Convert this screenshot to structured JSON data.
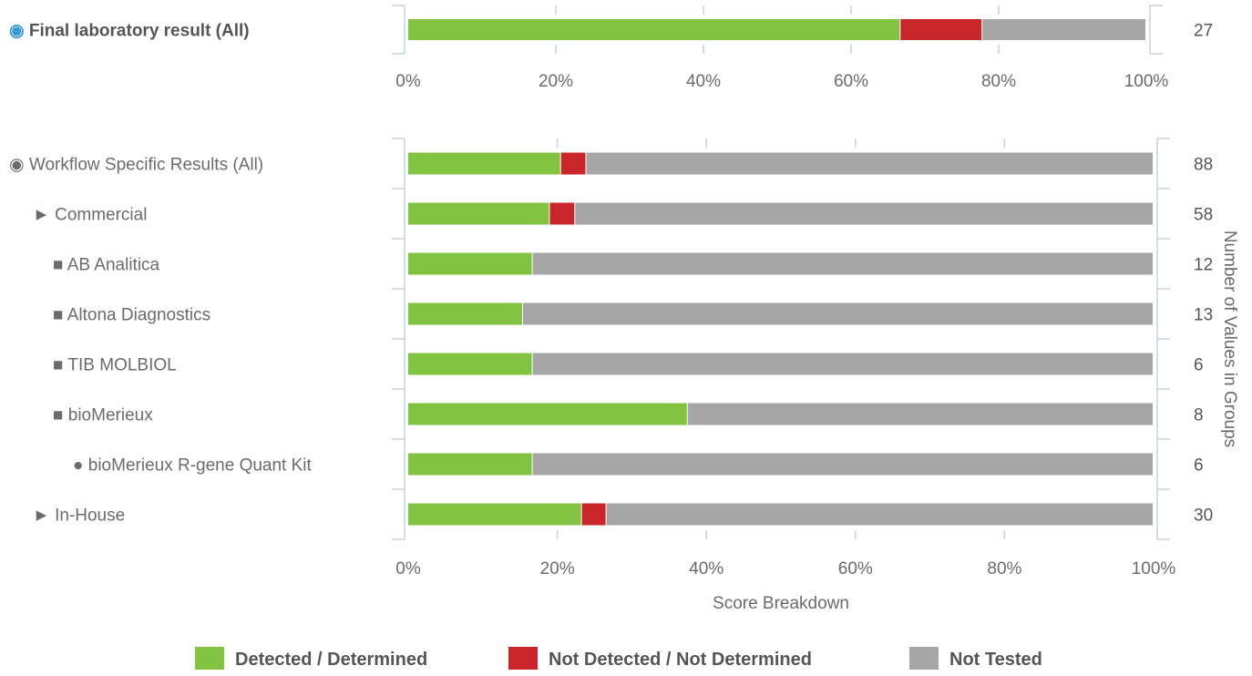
{
  "chart_data": [
    {
      "type": "bar",
      "stacked": true,
      "orientation": "horizontal",
      "categories": [
        {
          "symbol": "◉",
          "text": "Final laboratory result (All)"
        }
      ],
      "series": [
        {
          "name": "Detected / Determined",
          "color": "#82c341",
          "values": [
            66.7
          ]
        },
        {
          "name": "Not Detected / Not Determined",
          "color": "#c8262a",
          "values": [
            11.1
          ]
        },
        {
          "name": "Not Tested",
          "color": "#a6a6a6",
          "values": [
            22.2
          ]
        }
      ],
      "counts": [
        "27"
      ],
      "xticks": [
        "0%",
        "20%",
        "40%",
        "60%",
        "80%",
        "100%"
      ],
      "xlim": [
        0,
        100
      ],
      "xlabel": "",
      "ylabel_right": ""
    },
    {
      "type": "bar",
      "stacked": true,
      "orientation": "horizontal",
      "categories": [
        {
          "symbol": "◉",
          "text": "Workflow Specific Results (All)"
        },
        {
          "symbol": "►",
          "text": "Commercial"
        },
        {
          "symbol": "■",
          "text": "AB Analitica"
        },
        {
          "symbol": "■",
          "text": "Altona Diagnostics"
        },
        {
          "symbol": "■",
          "text": "TIB MOLBIOL"
        },
        {
          "symbol": "■",
          "text": "bioMerieux"
        },
        {
          "symbol": "●",
          "text": "bioMerieux R-gene Quant Kit"
        },
        {
          "symbol": "►",
          "text": "In-House"
        }
      ],
      "series": [
        {
          "name": "Detected / Determined",
          "color": "#82c341",
          "values": [
            20.5,
            19.0,
            16.7,
            15.4,
            16.7,
            37.5,
            16.7,
            23.3
          ]
        },
        {
          "name": "Not Detected / Not Determined",
          "color": "#c8262a",
          "values": [
            3.4,
            3.4,
            0,
            0,
            0,
            0,
            0,
            3.3
          ]
        },
        {
          "name": "Not Tested",
          "color": "#a6a6a6",
          "values": [
            76.1,
            77.6,
            83.3,
            84.6,
            83.3,
            62.5,
            83.3,
            73.4
          ]
        }
      ],
      "counts": [
        "88",
        "58",
        "12",
        "13",
        "6",
        "8",
        "6",
        "30"
      ],
      "xticks": [
        "0%",
        "20%",
        "40%",
        "60%",
        "80%",
        "100%"
      ],
      "xlim": [
        0,
        100
      ],
      "xlabel": "Score Breakdown",
      "ylabel_right": "Number of Values in Groups"
    }
  ],
  "legend": {
    "position": "bottom",
    "items": [
      {
        "label": "Detected / Determined",
        "color": "#82c341"
      },
      {
        "label": "Not Detected / Not Determined",
        "color": "#c8262a"
      },
      {
        "label": "Not Tested",
        "color": "#a6a6a6"
      }
    ]
  },
  "colors": {
    "axis": "#c5d3e0",
    "grid": "#c5d3e0",
    "first_label_symbol": "#3a9bd5"
  }
}
